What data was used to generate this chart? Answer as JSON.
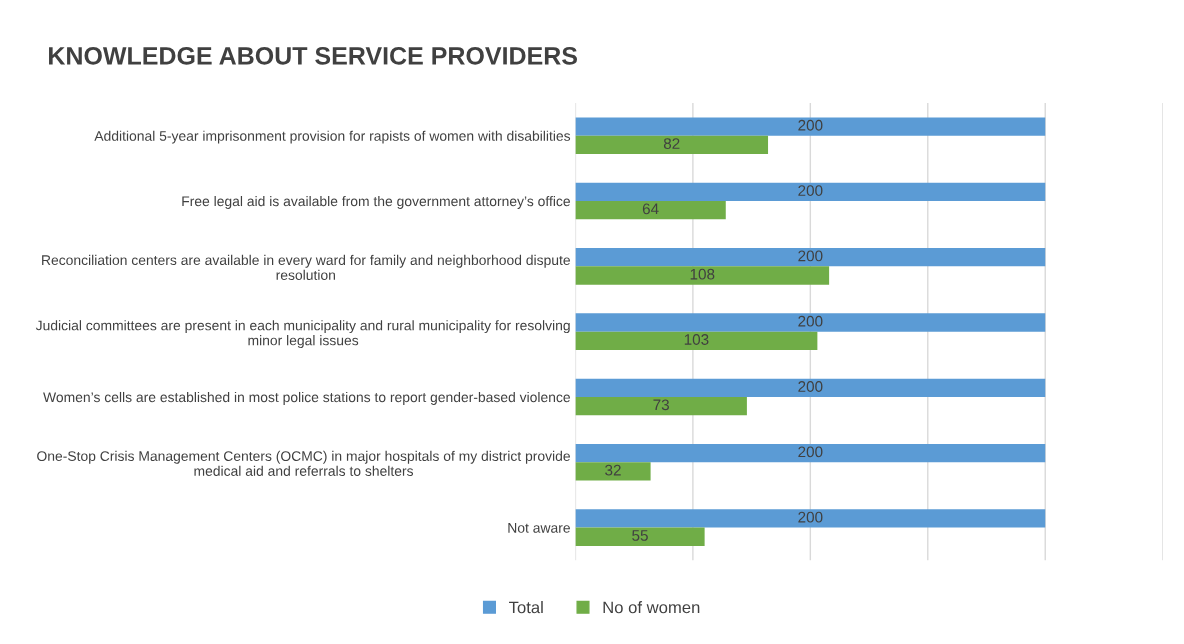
{
  "chart_data": {
    "type": "bar",
    "orientation": "horizontal",
    "title": "KNOWLEDGE ABOUT SERVICE PROVIDERS",
    "categories": [
      "Additional 5-year imprisonment provision for rapists of women with disabilities",
      "Free legal aid is available from the government attorney’s office",
      "Reconciliation centers are available in every ward for family and neighborhood dispute\nresolution",
      "Judicial committees are present in each municipality and rural municipality for resolving\nminor legal issues",
      "Women’s cells are established in most police stations to report gender-based violence",
      "One-Stop Crisis Management Centers (OCMC) in major hospitals of my district provide\nmedical aid and referrals to shelters",
      "Not aware"
    ],
    "series": [
      {
        "name": "Total",
        "color": "#5b9bd5",
        "values": [
          200,
          200,
          200,
          200,
          200,
          200,
          200
        ]
      },
      {
        "name": "No of women",
        "color": "#70ad47",
        "values": [
          82,
          64,
          108,
          103,
          73,
          32,
          55
        ]
      }
    ],
    "xlim": [
      0,
      250
    ],
    "xticks": [
      {
        "value": 0,
        "label": null
      },
      {
        "value": 50,
        "label": null
      },
      {
        "value": 100,
        "label": null
      },
      {
        "value": 150,
        "label": null
      },
      {
        "value": 200,
        "label": null
      },
      {
        "value": 250,
        "label": null
      }
    ],
    "tick_labels": "y",
    "grid": "x",
    "legend": "bottom",
    "data_labels": true
  }
}
